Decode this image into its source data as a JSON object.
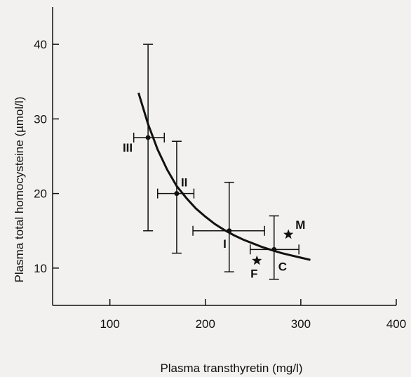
{
  "chart_data": {
    "type": "scatter",
    "xlabel": "Plasma transthyretin  (mg/l)",
    "ylabel": "Plasma total homocysteine  (µmol/l)",
    "xlim": [
      40,
      400
    ],
    "ylim": [
      5,
      45
    ],
    "x_ticks": [
      100,
      200,
      300,
      400
    ],
    "y_ticks": [
      10,
      20,
      30,
      40
    ],
    "x_tick_labels": [
      "100",
      "200",
      "300",
      "400"
    ],
    "y_tick_labels": [
      "10",
      "20",
      "30",
      "40"
    ],
    "grid": false,
    "groups": [
      {
        "label": "III",
        "x": 140,
        "y": 27.5,
        "x_err": [
          125,
          157
        ],
        "y_err": [
          15,
          40
        ]
      },
      {
        "label": "II",
        "x": 170,
        "y": 20,
        "x_err": [
          150,
          188
        ],
        "y_err": [
          12,
          27
        ]
      },
      {
        "label": "I",
        "x": 225,
        "y": 15,
        "x_err": [
          187,
          262
        ],
        "y_err": [
          9.5,
          21.5
        ]
      },
      {
        "label": "C",
        "x": 272,
        "y": 12.5,
        "x_err": [
          247,
          298
        ],
        "y_err": [
          8.5,
          17
        ]
      }
    ],
    "reference_points": [
      {
        "label": "M",
        "x": 287,
        "y": 14.5
      },
      {
        "label": "F",
        "x": 254,
        "y": 11
      }
    ],
    "fitted_curve": {
      "x": [
        130,
        140,
        150,
        160,
        170,
        180,
        190,
        200,
        210,
        220,
        230,
        240,
        250,
        260,
        270,
        280,
        290,
        300,
        310
      ],
      "y": [
        33.5,
        29.3,
        25.9,
        23.2,
        21.0,
        19.4,
        18.0,
        16.9,
        15.9,
        15.1,
        14.4,
        13.8,
        13.3,
        12.8,
        12.4,
        12.0,
        11.7,
        11.4,
        11.1
      ]
    }
  }
}
